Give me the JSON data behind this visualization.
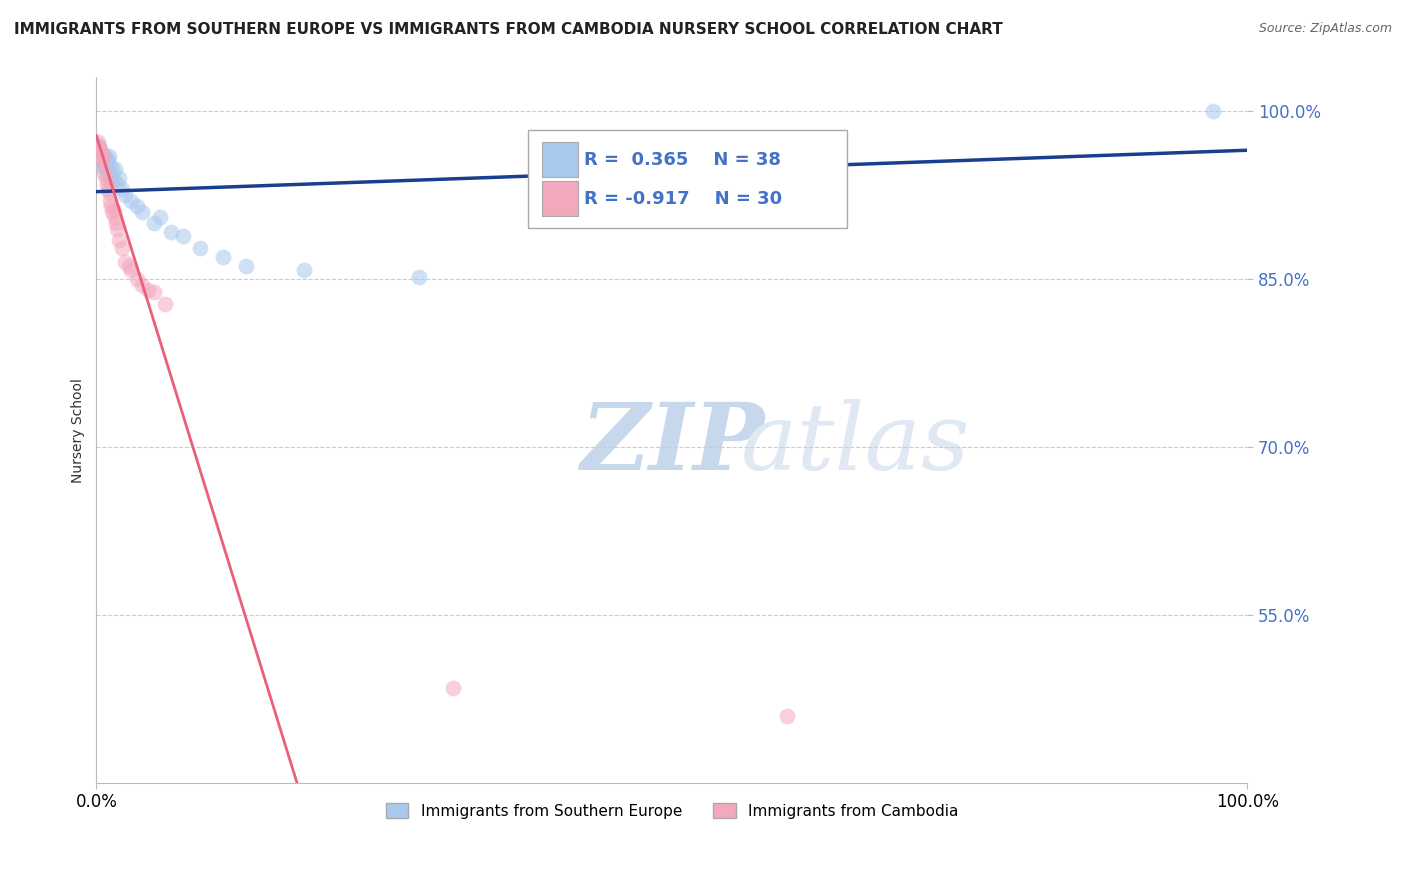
{
  "title": "IMMIGRANTS FROM SOUTHERN EUROPE VS IMMIGRANTS FROM CAMBODIA NURSERY SCHOOL CORRELATION CHART",
  "source_text": "Source: ZipAtlas.com",
  "ylabel": "Nursery School",
  "xlim": [
    0,
    1.0
  ],
  "ylim": [
    0.4,
    1.03
  ],
  "yticks": [
    0.55,
    0.7,
    0.85,
    1.0
  ],
  "ytick_labels": [
    "55.0%",
    "70.0%",
    "85.0%",
    "100.0%"
  ],
  "xticks": [
    0.0,
    1.0
  ],
  "xtick_labels": [
    "0.0%",
    "100.0%"
  ],
  "blue_R": 0.365,
  "blue_N": 38,
  "pink_R": -0.917,
  "pink_N": 30,
  "blue_color": "#A8C8EE",
  "pink_color": "#F4A8BC",
  "blue_line_color": "#1A3F8F",
  "pink_line_color": "#E8607A",
  "legend_label_blue": "Immigrants from Southern Europe",
  "legend_label_pink": "Immigrants from Cambodia",
  "watermark_zip": "ZIP",
  "watermark_atlas": "atlas",
  "blue_x": [
    0.001,
    0.002,
    0.003,
    0.003,
    0.004,
    0.005,
    0.005,
    0.006,
    0.006,
    0.007,
    0.007,
    0.008,
    0.009,
    0.01,
    0.01,
    0.011,
    0.012,
    0.013,
    0.014,
    0.015,
    0.016,
    0.018,
    0.02,
    0.022,
    0.025,
    0.03,
    0.035,
    0.04,
    0.05,
    0.055,
    0.065,
    0.075,
    0.09,
    0.11,
    0.13,
    0.18,
    0.28,
    0.97
  ],
  "blue_y": [
    0.97,
    0.968,
    0.965,
    0.96,
    0.955,
    0.952,
    0.958,
    0.95,
    0.962,
    0.955,
    0.96,
    0.95,
    0.958,
    0.945,
    0.955,
    0.96,
    0.94,
    0.95,
    0.945,
    0.938,
    0.948,
    0.935,
    0.94,
    0.93,
    0.925,
    0.92,
    0.915,
    0.91,
    0.9,
    0.905,
    0.892,
    0.888,
    0.878,
    0.87,
    0.862,
    0.858,
    0.852,
    1.0
  ],
  "pink_x": [
    0.001,
    0.002,
    0.003,
    0.004,
    0.005,
    0.006,
    0.007,
    0.008,
    0.009,
    0.01,
    0.011,
    0.012,
    0.013,
    0.014,
    0.015,
    0.016,
    0.017,
    0.018,
    0.02,
    0.022,
    0.025,
    0.028,
    0.03,
    0.035,
    0.04,
    0.045,
    0.05,
    0.06,
    0.31,
    0.6
  ],
  "pink_y": [
    0.972,
    0.968,
    0.965,
    0.958,
    0.955,
    0.96,
    0.945,
    0.94,
    0.935,
    0.93,
    0.928,
    0.92,
    0.915,
    0.91,
    0.912,
    0.905,
    0.9,
    0.895,
    0.885,
    0.878,
    0.865,
    0.862,
    0.858,
    0.85,
    0.845,
    0.84,
    0.838,
    0.828,
    0.485,
    0.46
  ],
  "blue_trend_x": [
    0.0,
    1.0
  ],
  "blue_trend_y": [
    0.928,
    0.965
  ],
  "pink_trend_x": [
    0.0,
    0.175
  ],
  "pink_trend_y": [
    0.978,
    0.398
  ]
}
